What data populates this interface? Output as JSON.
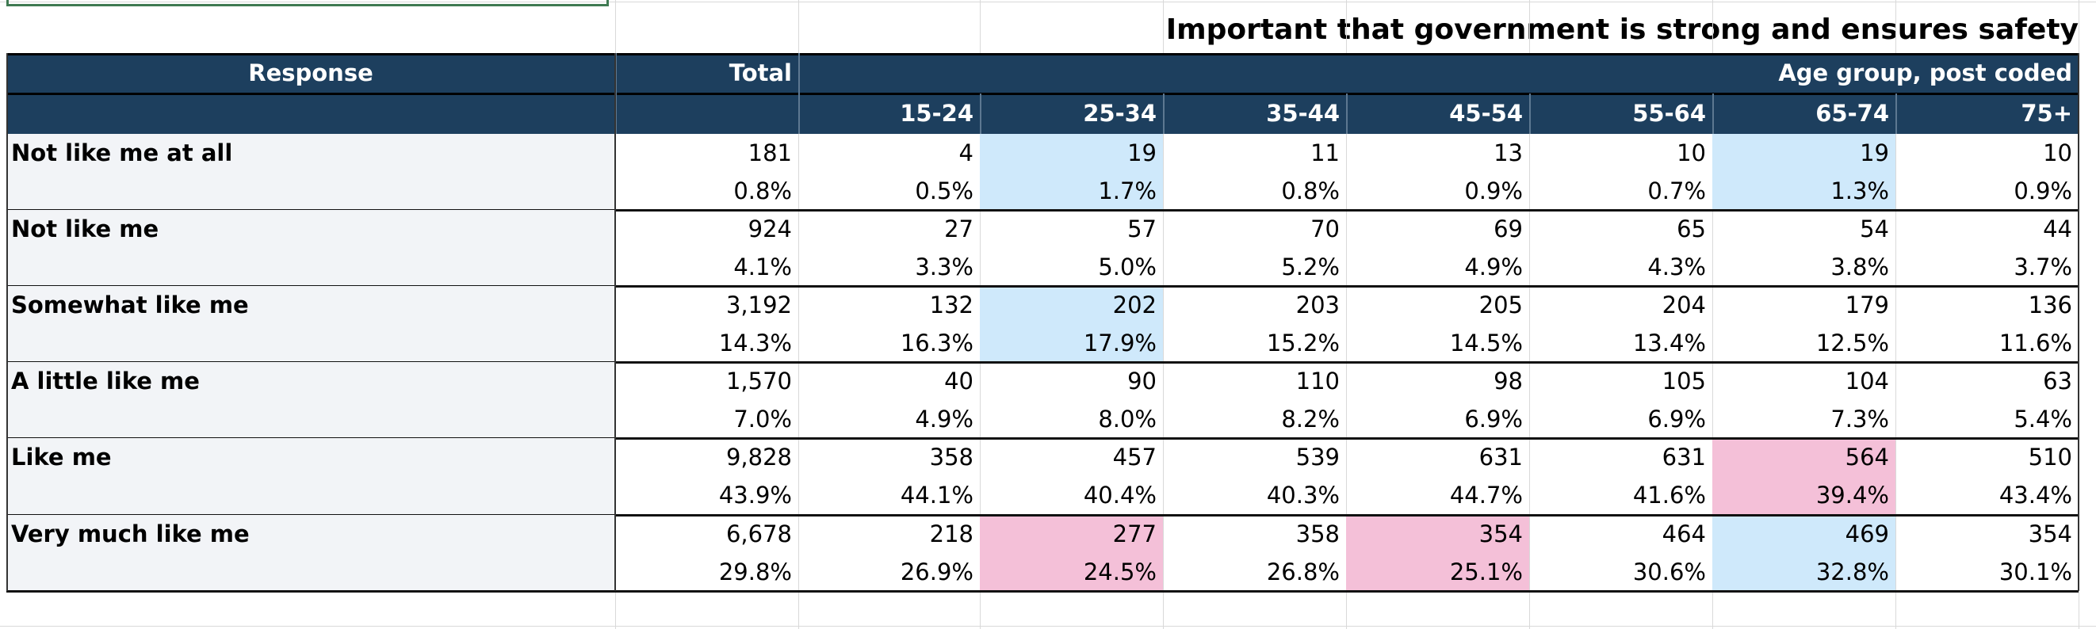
{
  "title": "Important that government is strong and ensures safety",
  "header": {
    "response": "Response",
    "total": "Total",
    "group": "Age group, post coded",
    "columns": [
      "15-24",
      "25-34",
      "35-44",
      "45-54",
      "55-64",
      "65-74",
      "75+"
    ]
  },
  "rows": [
    {
      "label": "Not like me at all",
      "counts": [
        "181",
        "4",
        "19",
        "11",
        "13",
        "10",
        "19",
        "10"
      ],
      "percents": [
        "0.8%",
        "0.5%",
        "1.7%",
        "0.8%",
        "0.9%",
        "0.7%",
        "1.3%",
        "0.9%"
      ]
    },
    {
      "label": "Not like me",
      "counts": [
        "924",
        "27",
        "57",
        "70",
        "69",
        "65",
        "54",
        "44"
      ],
      "percents": [
        "4.1%",
        "3.3%",
        "5.0%",
        "5.2%",
        "4.9%",
        "4.3%",
        "3.8%",
        "3.7%"
      ]
    },
    {
      "label": "Somewhat like me",
      "counts": [
        "3,192",
        "132",
        "202",
        "203",
        "205",
        "204",
        "179",
        "136"
      ],
      "percents": [
        "14.3%",
        "16.3%",
        "17.9%",
        "15.2%",
        "14.5%",
        "13.4%",
        "12.5%",
        "11.6%"
      ]
    },
    {
      "label": "A little like me",
      "counts": [
        "1,570",
        "40",
        "90",
        "110",
        "98",
        "105",
        "104",
        "63"
      ],
      "percents": [
        "7.0%",
        "4.9%",
        "8.0%",
        "8.2%",
        "6.9%",
        "6.9%",
        "7.3%",
        "5.4%"
      ]
    },
    {
      "label": "Like me",
      "counts": [
        "9,828",
        "358",
        "457",
        "539",
        "631",
        "631",
        "564",
        "510"
      ],
      "percents": [
        "43.9%",
        "44.1%",
        "40.4%",
        "40.3%",
        "44.7%",
        "41.6%",
        "39.4%",
        "43.4%"
      ]
    },
    {
      "label": "Very much like me",
      "counts": [
        "6,678",
        "218",
        "277",
        "358",
        "354",
        "464",
        "469",
        "354"
      ],
      "percents": [
        "29.8%",
        "26.9%",
        "24.5%",
        "26.8%",
        "25.1%",
        "30.6%",
        "32.8%",
        "30.1%"
      ]
    }
  ],
  "highlights": [
    {
      "row": 0,
      "col": 2,
      "color": "#cfe9fb"
    },
    {
      "row": 0,
      "col": 6,
      "color": "#cfe9fb"
    },
    {
      "row": 2,
      "col": 2,
      "color": "#cfe9fb"
    },
    {
      "row": 5,
      "col": 6,
      "color": "#cfe9fb"
    },
    {
      "row": 4,
      "col": 6,
      "color": "#f4c0d8"
    },
    {
      "row": 5,
      "col": 2,
      "color": "#f4c0d8"
    },
    {
      "row": 5,
      "col": 4,
      "color": "#f4c0d8"
    }
  ]
}
